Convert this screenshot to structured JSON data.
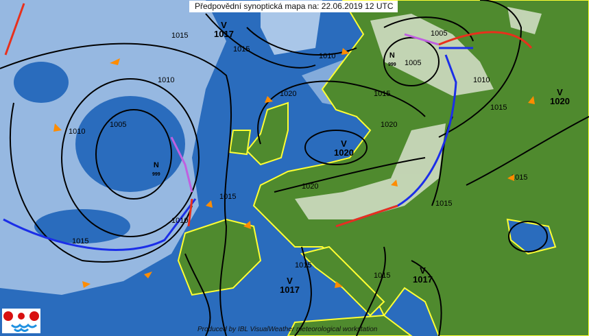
{
  "header": {
    "title": "Předpovědní synoptická mapa na: 22.06.2019 12 UTC"
  },
  "footer": {
    "credit": "Produced by IBL VisualWeather meteorological workstation"
  },
  "colors": {
    "sea": "#2a6cbd",
    "land": "#4f8a2e",
    "cloud": "#a9c6e8",
    "heavy_cloud": "#d9e4d8",
    "cold_front": "#1b2ee8",
    "warm_front": "#e8301c",
    "occlusion": "#c060e0",
    "coast": "#ffff33",
    "isobar": "#000000",
    "wind_arrow": "#ff8c00"
  },
  "pressure_centers": [
    {
      "type": "V",
      "value": "1017"
    },
    {
      "type": "V",
      "value": "1020"
    },
    {
      "type": "V",
      "value": "1020"
    },
    {
      "type": "N",
      "value": "999"
    },
    {
      "type": "N",
      "value": "999"
    },
    {
      "type": "V",
      "value": "1017"
    },
    {
      "type": "V",
      "value": "1017"
    }
  ],
  "isobar_labels": [
    "1015",
    "1010",
    "1005",
    "1010",
    "1015",
    "1010",
    "1015",
    "1015",
    "1020",
    "1015",
    "1020",
    "1005",
    "1010",
    "1015",
    "1015",
    "1020",
    "1015",
    "1015",
    "1015",
    "1010",
    "1005"
  ],
  "logo": {
    "name": "CHMI logo"
  }
}
